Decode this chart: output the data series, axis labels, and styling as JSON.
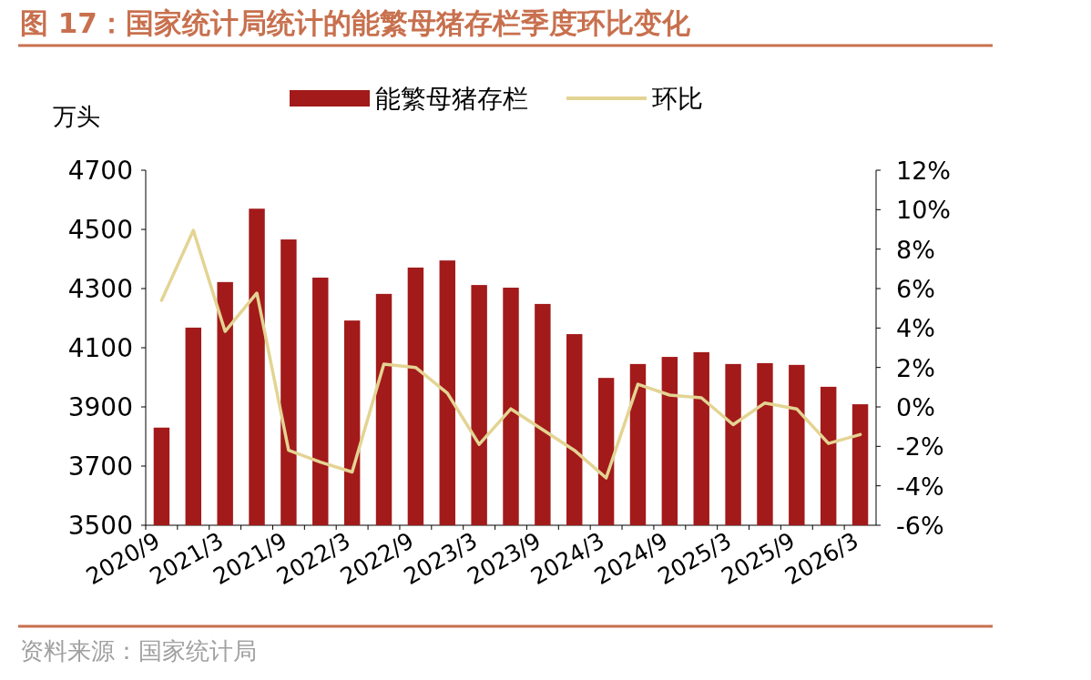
{
  "chart_data": {
    "type": "bar",
    "title": "图 17：国家统计局统计的能繁母猪存栏季度环比变化",
    "ylabel": "万头",
    "annotations": [
      "资料来源：国家统计局"
    ],
    "categories": [
      "2020/9",
      null,
      "2021/3",
      null,
      "2021/9",
      null,
      "2022/3",
      null,
      "2022/9",
      null,
      "2023/3",
      null,
      "2023/9",
      null,
      "2024/3",
      null,
      "2024/9",
      null,
      "2025/3",
      null,
      "2025/9",
      null,
      "2026/3"
    ],
    "series": [
      {
        "name": "能繁母猪存栏",
        "color": "#a31a1a",
        "values": [
          3830,
          4168,
          4322,
          4570,
          4466,
          4337,
          4192,
          4282,
          4371,
          4395,
          4312,
          4303,
          4248,
          4146,
          3998,
          4045,
          4069,
          4085,
          4045,
          4048,
          4042,
          3968,
          3909
        ]
      },
      {
        "name": "环比",
        "type": "line",
        "axis": "y2",
        "color": "#e3d493",
        "values": [
          5.4,
          8.95,
          3.83,
          5.77,
          -2.2,
          -2.8,
          -3.3,
          2.17,
          2.0,
          0.7,
          -1.9,
          -0.1,
          -1.15,
          -2.2,
          -3.6,
          1.15,
          0.6,
          0.46,
          -0.9,
          0.2,
          -0.1,
          -1.85,
          -1.4
        ]
      }
    ],
    "ylim": [
      3500,
      4700
    ],
    "yticks": [
      3500,
      3700,
      3900,
      4100,
      4300,
      4500,
      4700
    ],
    "y2lim": [
      -6,
      12
    ],
    "y2ticks": [
      {
        "value": -6,
        "label": "-6%"
      },
      {
        "value": -4,
        "label": "-4%"
      },
      {
        "value": -2,
        "label": "-2%"
      },
      {
        "value": 0,
        "label": "0%"
      },
      {
        "value": 2,
        "label": "2%"
      },
      {
        "value": 4,
        "label": "4%"
      },
      {
        "value": 6,
        "label": "6%"
      },
      {
        "value": 8,
        "label": "8%"
      },
      {
        "value": 10,
        "label": "10%"
      },
      {
        "value": 12,
        "label": "12%"
      }
    ],
    "legend": "top",
    "grid": false,
    "marker": "none",
    "line_style": "solid"
  }
}
